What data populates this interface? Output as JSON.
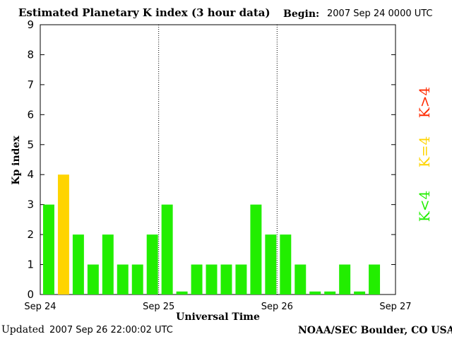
{
  "title": "Estimated Planetary K index (3 hour data)",
  "begin_label": "Begin:",
  "begin_value": "2007 Sep 24 0000 UTC",
  "updated_label": "Updated",
  "updated_value": "2007 Sep 26 22:00:02 UTC",
  "credit": "NOAA/SEC Boulder, CO USA",
  "legend": [
    {
      "label": "K>4",
      "color": "#ff2a00"
    },
    {
      "label": "K=4",
      "color": "#ffd400"
    },
    {
      "label": "K<4",
      "color": "#22ee00"
    }
  ],
  "chart_data": {
    "type": "bar",
    "title": "Estimated Planetary K index (3 hour data)",
    "xlabel": "Universal Time",
    "ylabel": "Kp index",
    "ylim": [
      0,
      9
    ],
    "yticks": [
      0,
      1,
      2,
      3,
      4,
      5,
      6,
      7,
      8,
      9
    ],
    "xticks": [
      "Sep 24",
      "Sep 25",
      "Sep 26",
      "Sep 27"
    ],
    "bins_per_day": 8,
    "days": 3,
    "values": [
      3,
      4,
      2,
      1,
      2,
      1,
      1,
      2,
      3,
      0.1,
      1,
      1,
      1,
      1,
      3,
      2,
      2,
      1,
      0.1,
      0.1,
      1,
      0.1,
      1
    ],
    "colors": {
      "below": "#22ee00",
      "equal": "#ffd400",
      "above": "#ff2a00"
    },
    "grid": "dotted vertical lines at day boundaries"
  }
}
